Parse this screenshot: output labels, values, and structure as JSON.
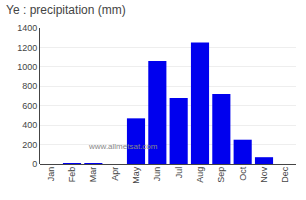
{
  "chart_data": {
    "type": "bar",
    "title": "Ye : precipitation (mm)",
    "categories": [
      "Jan",
      "Feb",
      "Mar",
      "Apr",
      "May",
      "Jun",
      "Jul",
      "Aug",
      "Sep",
      "Oct",
      "Nov",
      "Dec"
    ],
    "values": [
      0,
      5,
      10,
      0,
      470,
      1060,
      680,
      1250,
      720,
      250,
      70,
      0
    ],
    "color": "#0000EE",
    "ylim": [
      0,
      1400
    ],
    "yticks": [
      0,
      200,
      400,
      600,
      800,
      1000,
      1200,
      1400
    ],
    "grid": true,
    "annotations": [
      "www.allmetsat.com"
    ]
  }
}
